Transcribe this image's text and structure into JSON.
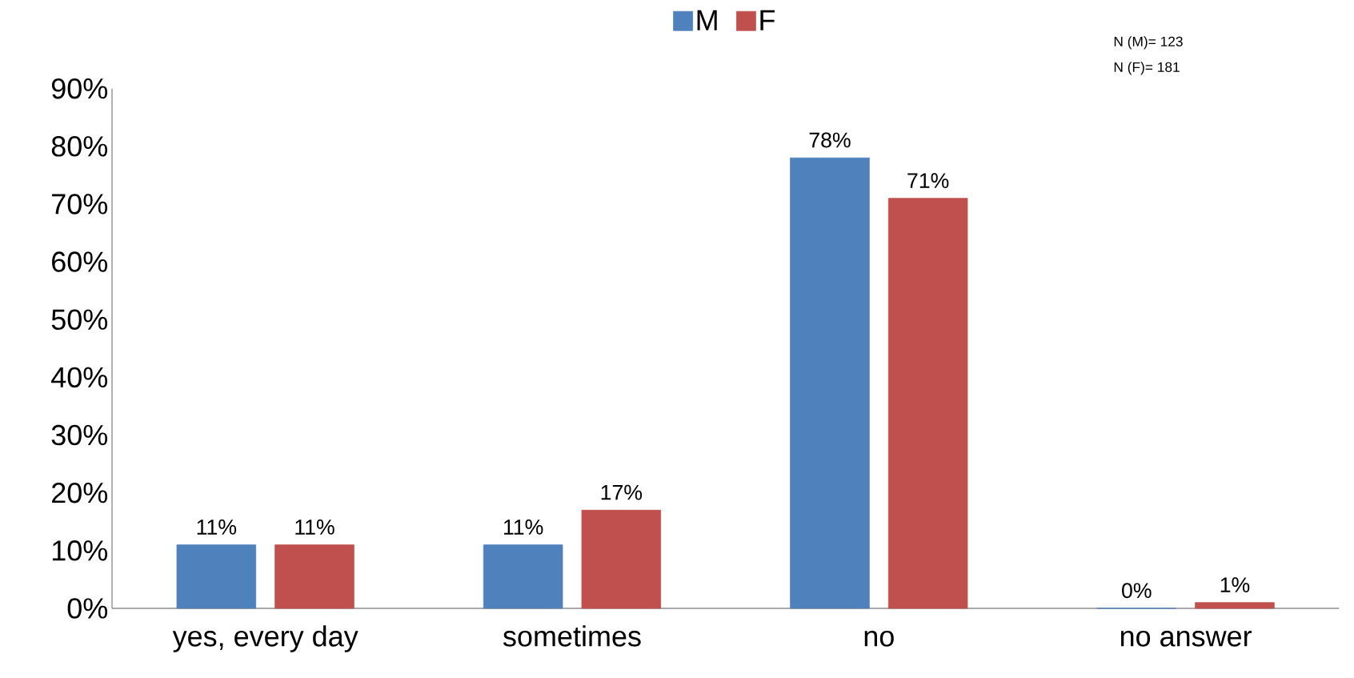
{
  "chart_data": {
    "type": "bar",
    "categories": [
      "yes, every day",
      "sometimes",
      "no",
      "no answer"
    ],
    "series": [
      {
        "name": "M",
        "color": "#4f81bd",
        "values": [
          11,
          11,
          78,
          0
        ],
        "value_labels": [
          "11%",
          "11%",
          "78%",
          "0%"
        ]
      },
      {
        "name": "F",
        "color": "#c0504d",
        "values": [
          11,
          17,
          71,
          1
        ],
        "value_labels": [
          "11%",
          "17%",
          "71%",
          "1%"
        ]
      }
    ],
    "ylim": [
      0,
      90
    ],
    "yticks": [
      {
        "value": 0,
        "label": "0%"
      },
      {
        "value": 10,
        "label": "10%"
      },
      {
        "value": 20,
        "label": "20%"
      },
      {
        "value": 30,
        "label": "30%"
      },
      {
        "value": 40,
        "label": "40%"
      },
      {
        "value": 50,
        "label": "50%"
      },
      {
        "value": 60,
        "label": "60%"
      },
      {
        "value": 70,
        "label": "70%"
      },
      {
        "value": 80,
        "label": "80%"
      },
      {
        "value": 90,
        "label": "90%"
      }
    ],
    "grid": false,
    "legend": "top",
    "annotations": [
      "N (M)= 123",
      "N (F)= 181"
    ]
  }
}
